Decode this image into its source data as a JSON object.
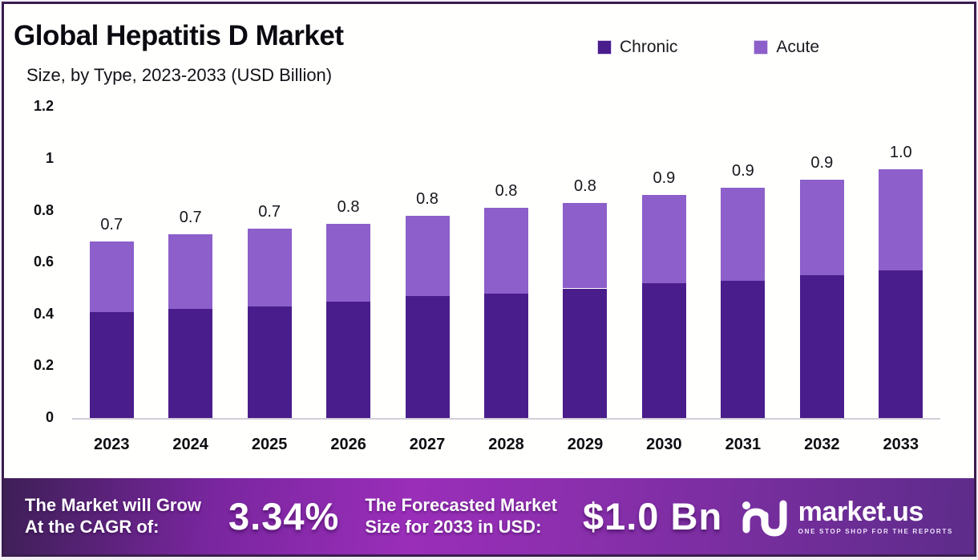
{
  "header": {
    "title": "Global Hepatitis D Market",
    "subtitle": "Size, by Type, 2023-2033 (USD Billion)"
  },
  "legend": [
    {
      "label": "Chronic",
      "color": "#4a1d8c"
    },
    {
      "label": "Acute",
      "color": "#8c5fca"
    }
  ],
  "chart_data": {
    "type": "bar",
    "stacked": true,
    "title": "Global Hepatitis D Market Size, by Type, 2023-2033 (USD Billion)",
    "categories": [
      "2023",
      "2024",
      "2025",
      "2026",
      "2027",
      "2028",
      "2029",
      "2030",
      "2031",
      "2032",
      "2033"
    ],
    "series": [
      {
        "name": "Chronic",
        "color": "#4a1d8c",
        "values": [
          0.41,
          0.42,
          0.43,
          0.45,
          0.47,
          0.48,
          0.5,
          0.52,
          0.53,
          0.55,
          0.57
        ]
      },
      {
        "name": "Acute",
        "color": "#8c5fca",
        "values": [
          0.27,
          0.29,
          0.3,
          0.3,
          0.31,
          0.33,
          0.33,
          0.34,
          0.36,
          0.37,
          0.39
        ]
      }
    ],
    "total_labels": [
      "0.7",
      "0.7",
      "0.7",
      "0.8",
      "0.8",
      "0.8",
      "0.8",
      "0.9",
      "0.9",
      "0.9",
      "1.0"
    ],
    "xlabel": "",
    "ylabel": "",
    "ylim": [
      0,
      1.2
    ],
    "yticks": [
      "1.2",
      "1",
      "0.8",
      "0.6",
      "0.4",
      "0.2",
      "0"
    ],
    "grid": false,
    "legend_position": "top-right"
  },
  "footer": {
    "cagr_label_line1": "The Market will Grow",
    "cagr_label_line2": "At the CAGR of:",
    "cagr_value": "3.34%",
    "forecast_label_line1": "The Forecasted Market",
    "forecast_label_line2": "Size for 2033 in USD:",
    "forecast_value": "$1.0 Bn",
    "brand": {
      "name": "market.us",
      "tagline": "ONE STOP SHOP FOR THE REPORTS"
    },
    "gradient": [
      "#3e1f57",
      "#7a26a0",
      "#9a2eb9",
      "#8c2fae",
      "#5d2c8a"
    ]
  }
}
